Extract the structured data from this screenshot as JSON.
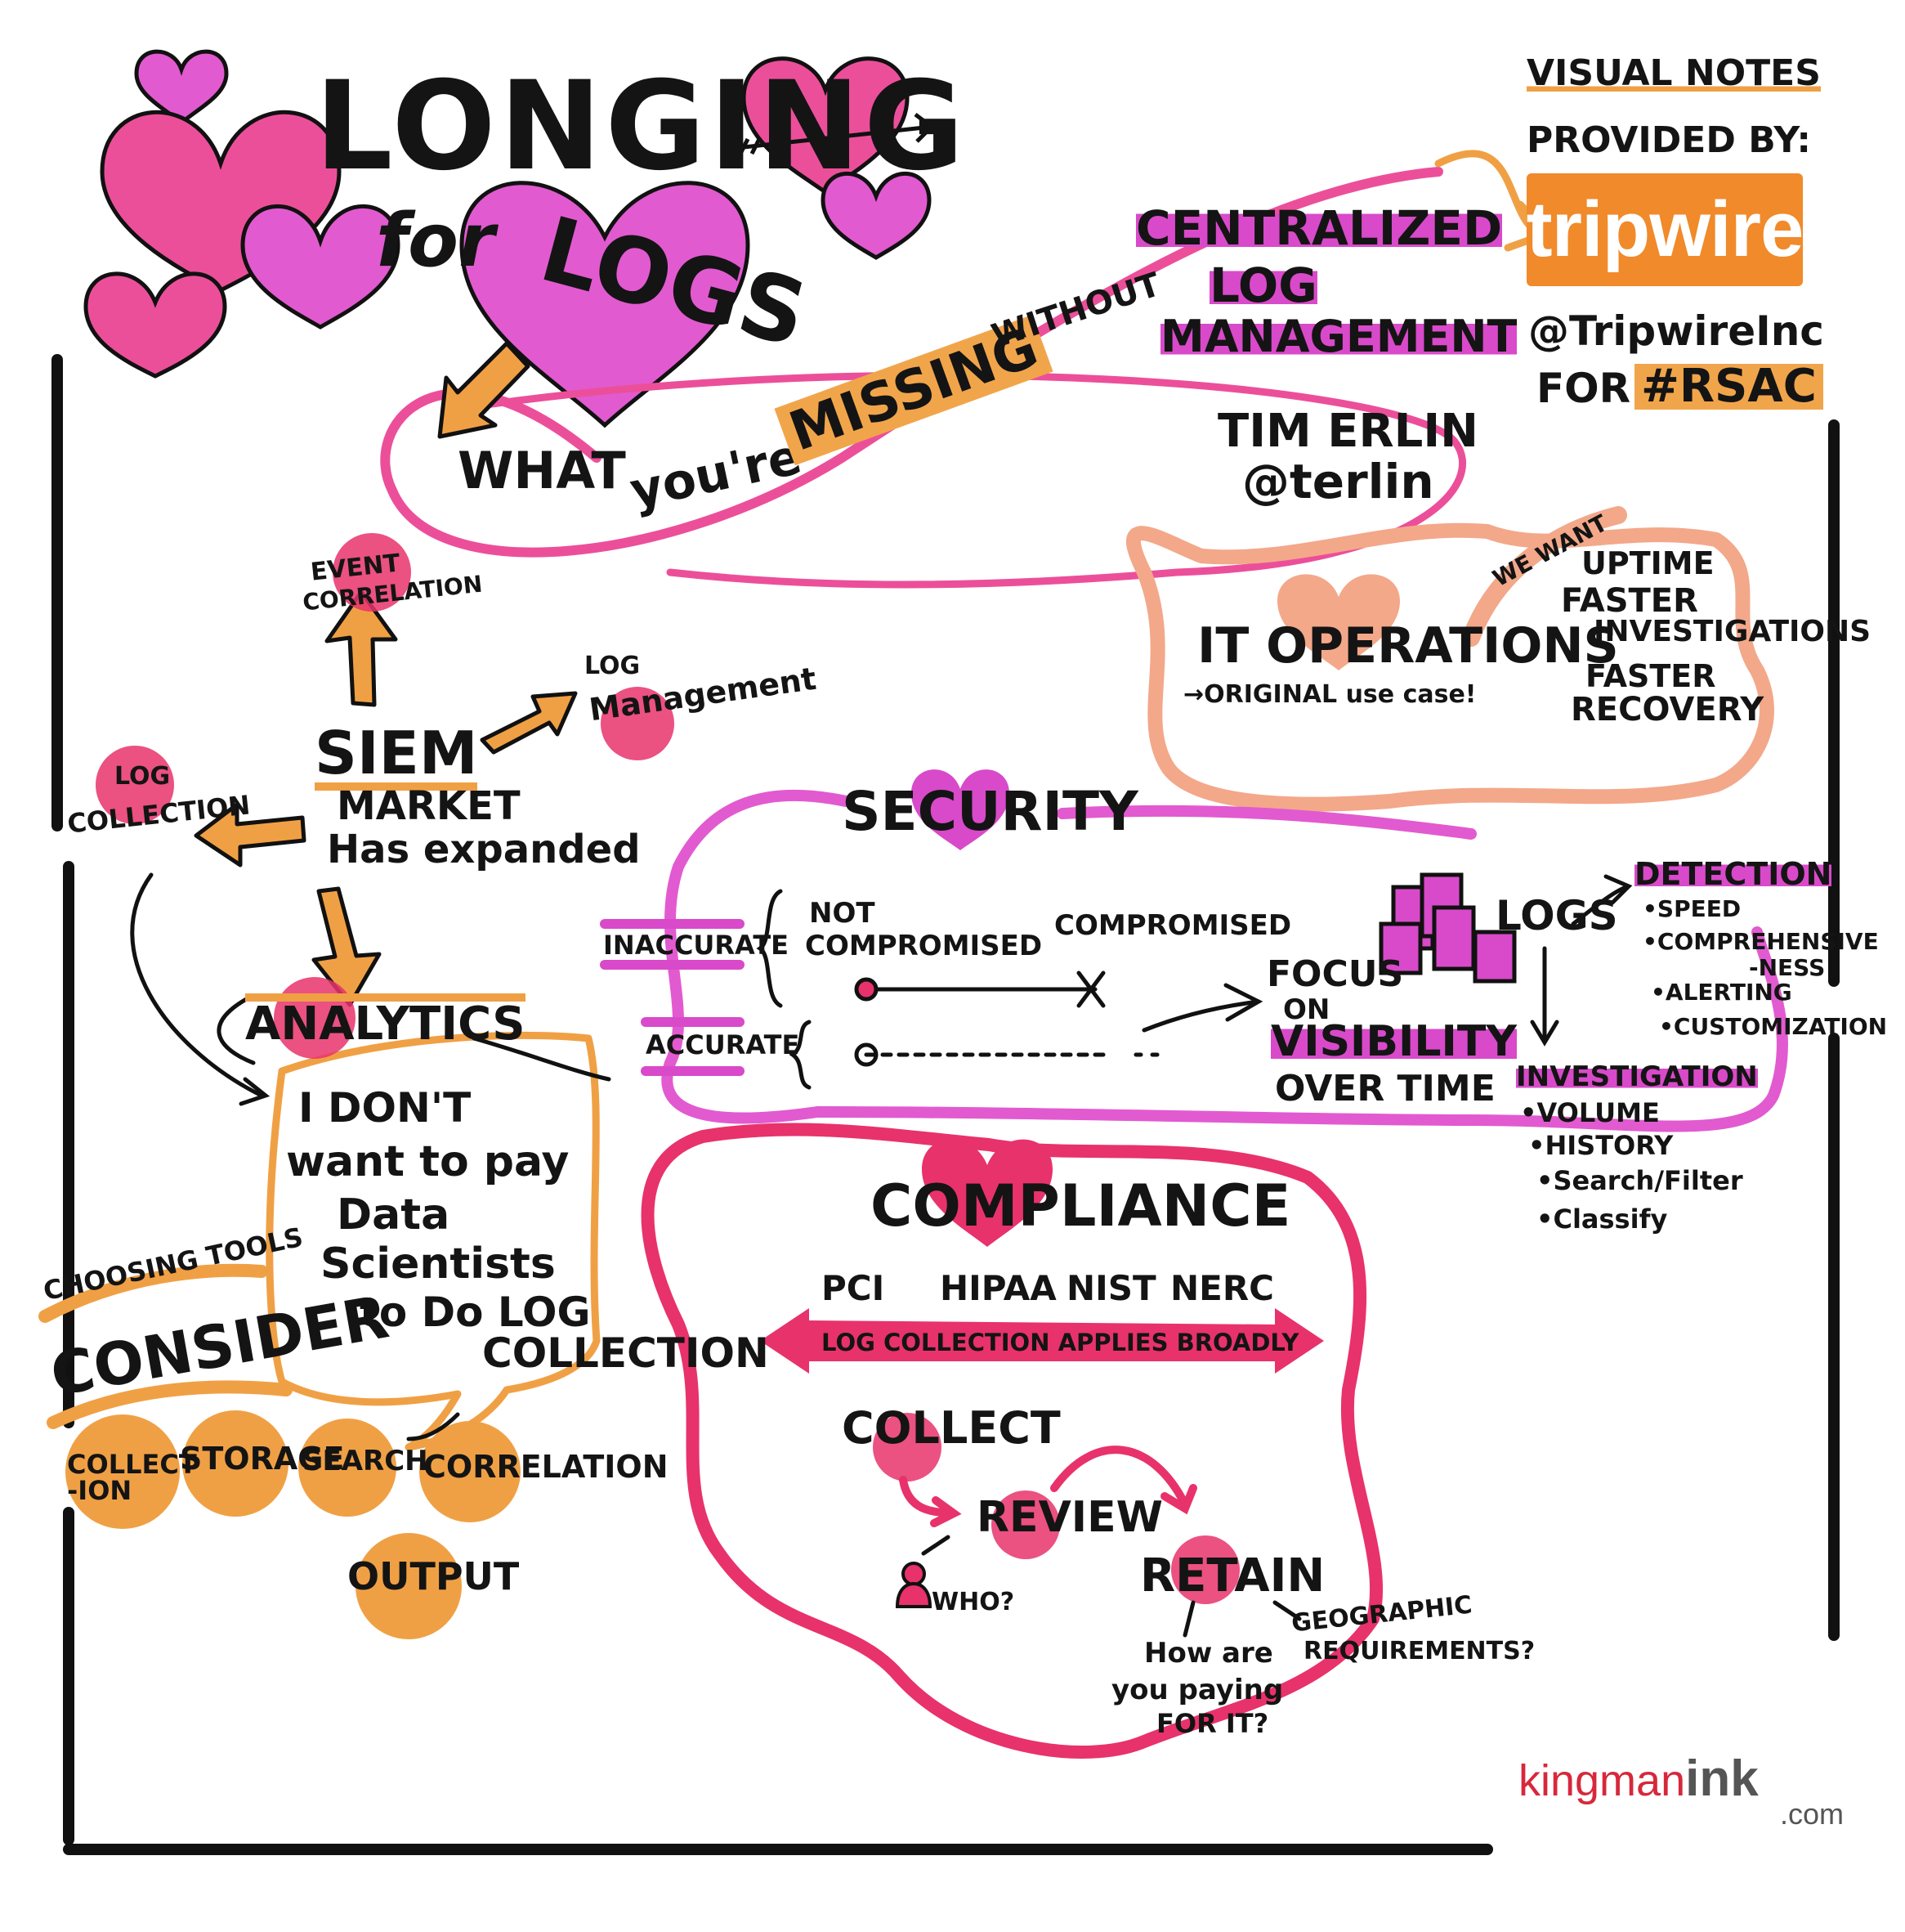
{
  "title": {
    "line1": "LONGING",
    "line2": "for",
    "line3": "LOGS"
  },
  "subtitle": {
    "what": "WHAT",
    "youre": "you're",
    "missing": "MISSING",
    "without": "WITHOUT",
    "centralized": "CENTRALIZED",
    "log": "LOG",
    "management": "MANAGEMENT"
  },
  "speaker": {
    "name": "TIM ERLIN",
    "handle": "@terlin"
  },
  "credit": {
    "line1": "VISUAL NOTES",
    "line2": "PROVIDED BY:",
    "brand": "tripwire",
    "handle": "@TripwireInc",
    "for": "FOR",
    "hashtag": "#RSAC"
  },
  "siem": {
    "title": "SIEM",
    "line1": "MARKET",
    "line2": "Has expanded",
    "event_correlation_1": "EVENT",
    "event_correlation_2": "CORRELATION",
    "log_management_1": "LOG",
    "log_management_2": "Management",
    "log_collection_1": "LOG",
    "log_collection_2": "COLLECTION",
    "analytics": "ANALYTICS"
  },
  "quote": {
    "line1": "I DON'T",
    "line2": "want to pay",
    "line3": "Data",
    "line4": "Scientists",
    "line5": "to Do LOG",
    "line6": "COLLECTION"
  },
  "choosing": {
    "label": "CHOOSING TOOLS",
    "consider": "CONSIDER",
    "items": [
      "COLLECT -ION",
      "STORAGE",
      "SEARCH",
      "CORRELATION",
      "OUTPUT"
    ]
  },
  "it_ops": {
    "title": "IT OPERATIONS",
    "sub": "→ORIGINAL use case!",
    "we_want": "WE WANT",
    "wants": [
      "UPTIME",
      "FASTER",
      "INVESTIGATIONS",
      "FASTER",
      "RECOVERY"
    ]
  },
  "security": {
    "title": "SECURITY",
    "inaccurate": "INACCURATE",
    "accurate": "ACCURATE",
    "not_compromised_1": "NOT",
    "not_compromised_2": "COMPROMISED",
    "compromised": "COMPROMISED",
    "focus_1": "FOCUS",
    "focus_2": "ON",
    "visibility": "VISIBILITY",
    "over_time": "OVER TIME",
    "logs": "LOGS",
    "detection": "DETECTION",
    "detection_items": [
      "•SPEED",
      "•COMPREHENSIVE",
      "-NESS",
      "•ALERTING",
      "•CUSTOMIZATION"
    ],
    "investigation": "INVESTIGATION",
    "investigation_items": [
      "•VOLUME",
      "•HISTORY",
      "•Search/Filter",
      "•Classify"
    ]
  },
  "compliance": {
    "title": "COMPLIANCE",
    "standards": [
      "PCI",
      "HIPAA",
      "NIST",
      "NERC"
    ],
    "banner": "LOG COLLECTION APPLIES BROADLY",
    "collect": "COLLECT",
    "review": "REVIEW",
    "retain": "RETAIN",
    "who": "WHO?",
    "paying_1": "How are",
    "paying_2": "you paying",
    "paying_3": "FOR IT?",
    "geo_1": "GEOGRAPHIC",
    "geo_2": "REQUIREMENTS?"
  },
  "footer": {
    "brand_a": "kingman",
    "brand_b": "ink",
    "brand_c": ".com"
  },
  "colors": {
    "pink": "#e8479a",
    "magenta": "#d84ac9",
    "orange": "#f0a044",
    "red": "#e8326b",
    "black": "#141414"
  }
}
